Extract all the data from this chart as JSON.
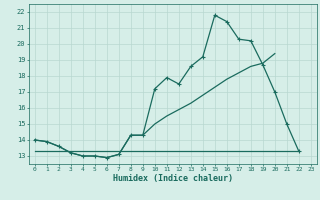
{
  "xlabel": "Humidex (Indice chaleur)",
  "xlim": [
    -0.5,
    23.5
  ],
  "ylim": [
    12.5,
    22.5
  ],
  "xticks": [
    0,
    1,
    2,
    3,
    4,
    5,
    6,
    7,
    8,
    9,
    10,
    11,
    12,
    13,
    14,
    15,
    16,
    17,
    18,
    19,
    20,
    21,
    22,
    23
  ],
  "yticks": [
    13,
    14,
    15,
    16,
    17,
    18,
    19,
    20,
    21,
    22
  ],
  "line_color": "#1a6b5e",
  "bg_color": "#d6eee8",
  "grid_color": "#b8d8d0",
  "line1_x": [
    0,
    1,
    2,
    3,
    4,
    5,
    6,
    7,
    8,
    9,
    10,
    11,
    12,
    13,
    14,
    15,
    16,
    17,
    18,
    19,
    20,
    21,
    22
  ],
  "line1_y": [
    14.0,
    13.9,
    13.6,
    13.2,
    13.0,
    13.0,
    12.9,
    13.1,
    14.3,
    14.3,
    17.2,
    17.9,
    17.5,
    18.6,
    19.2,
    21.8,
    21.4,
    20.3,
    20.2,
    18.7,
    17.0,
    15.0,
    13.3
  ],
  "line2_x": [
    0,
    1,
    2,
    3,
    4,
    5,
    6,
    7,
    8,
    9,
    10,
    11,
    12,
    13,
    14,
    15,
    16,
    17,
    18,
    19,
    20
  ],
  "line2_y": [
    14.0,
    13.9,
    13.6,
    13.2,
    13.0,
    13.0,
    12.9,
    13.1,
    14.3,
    14.3,
    15.0,
    15.5,
    15.9,
    16.3,
    16.8,
    17.3,
    17.8,
    18.2,
    18.6,
    18.8,
    19.4
  ],
  "line3_x": [
    0,
    14,
    22
  ],
  "line3_y": [
    13.3,
    13.3,
    13.3
  ]
}
